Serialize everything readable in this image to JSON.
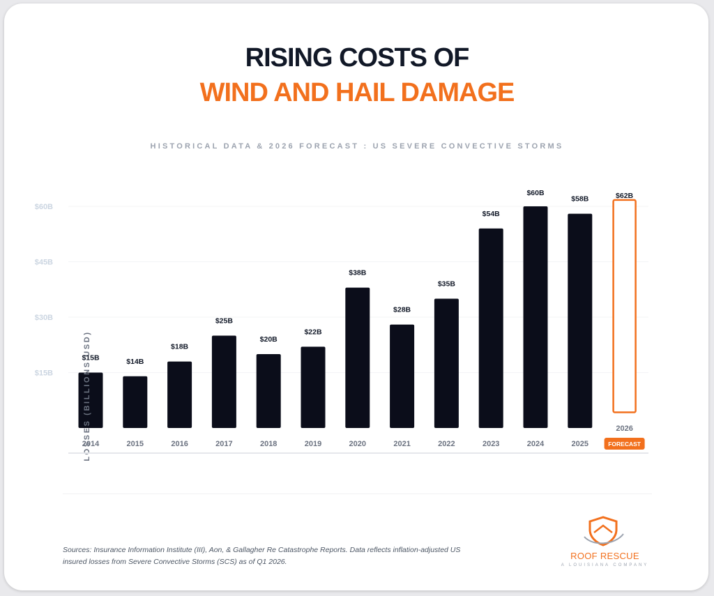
{
  "header": {
    "title_line1": "RISING COSTS OF",
    "title_line2": "WIND AND HAIL DAMAGE",
    "subtitle": "HISTORICAL DATA & 2026 FORECAST : US SEVERE CONVECTIVE STORMS"
  },
  "chart_data": {
    "type": "bar",
    "title": "Rising Costs of Wind and Hail Damage",
    "ylabel": "INSURED LOSSES (BILLIONS USD)",
    "xlabel": "",
    "ylim": [
      0,
      60
    ],
    "yticks": [
      15,
      30,
      45,
      60
    ],
    "ytick_labels": [
      "$15B",
      "$30B",
      "$45B",
      "$60B"
    ],
    "categories": [
      "2014",
      "2015",
      "2016",
      "2017",
      "2018",
      "2019",
      "2020",
      "2021",
      "2022",
      "2023",
      "2024",
      "2025",
      "2026"
    ],
    "values": [
      15,
      14,
      18,
      25,
      20,
      22,
      38,
      28,
      35,
      54,
      60,
      58,
      62
    ],
    "data_labels": [
      "$15B",
      "$14B",
      "$18B",
      "$25B",
      "$20B",
      "$22B",
      "$38B",
      "$28B",
      "$35B",
      "$54B",
      "$60B",
      "$58B",
      "$62B"
    ],
    "forecast_category": "2026",
    "forecast_badge": "FORECAST",
    "grid": true,
    "colors": {
      "historical": "#0b0d1a",
      "forecast": "#f2701d"
    }
  },
  "footer": {
    "sources": "Sources: Insurance Information Institute (III), Aon, & Gallagher Re Catastrophe Reports. Data reflects inflation-adjusted US insured losses from Severe Convective Storms (SCS) as of Q1 2026.",
    "brand_name": "ROOF RESCUE",
    "brand_tagline": "A LOUISIANA COMPANY"
  }
}
